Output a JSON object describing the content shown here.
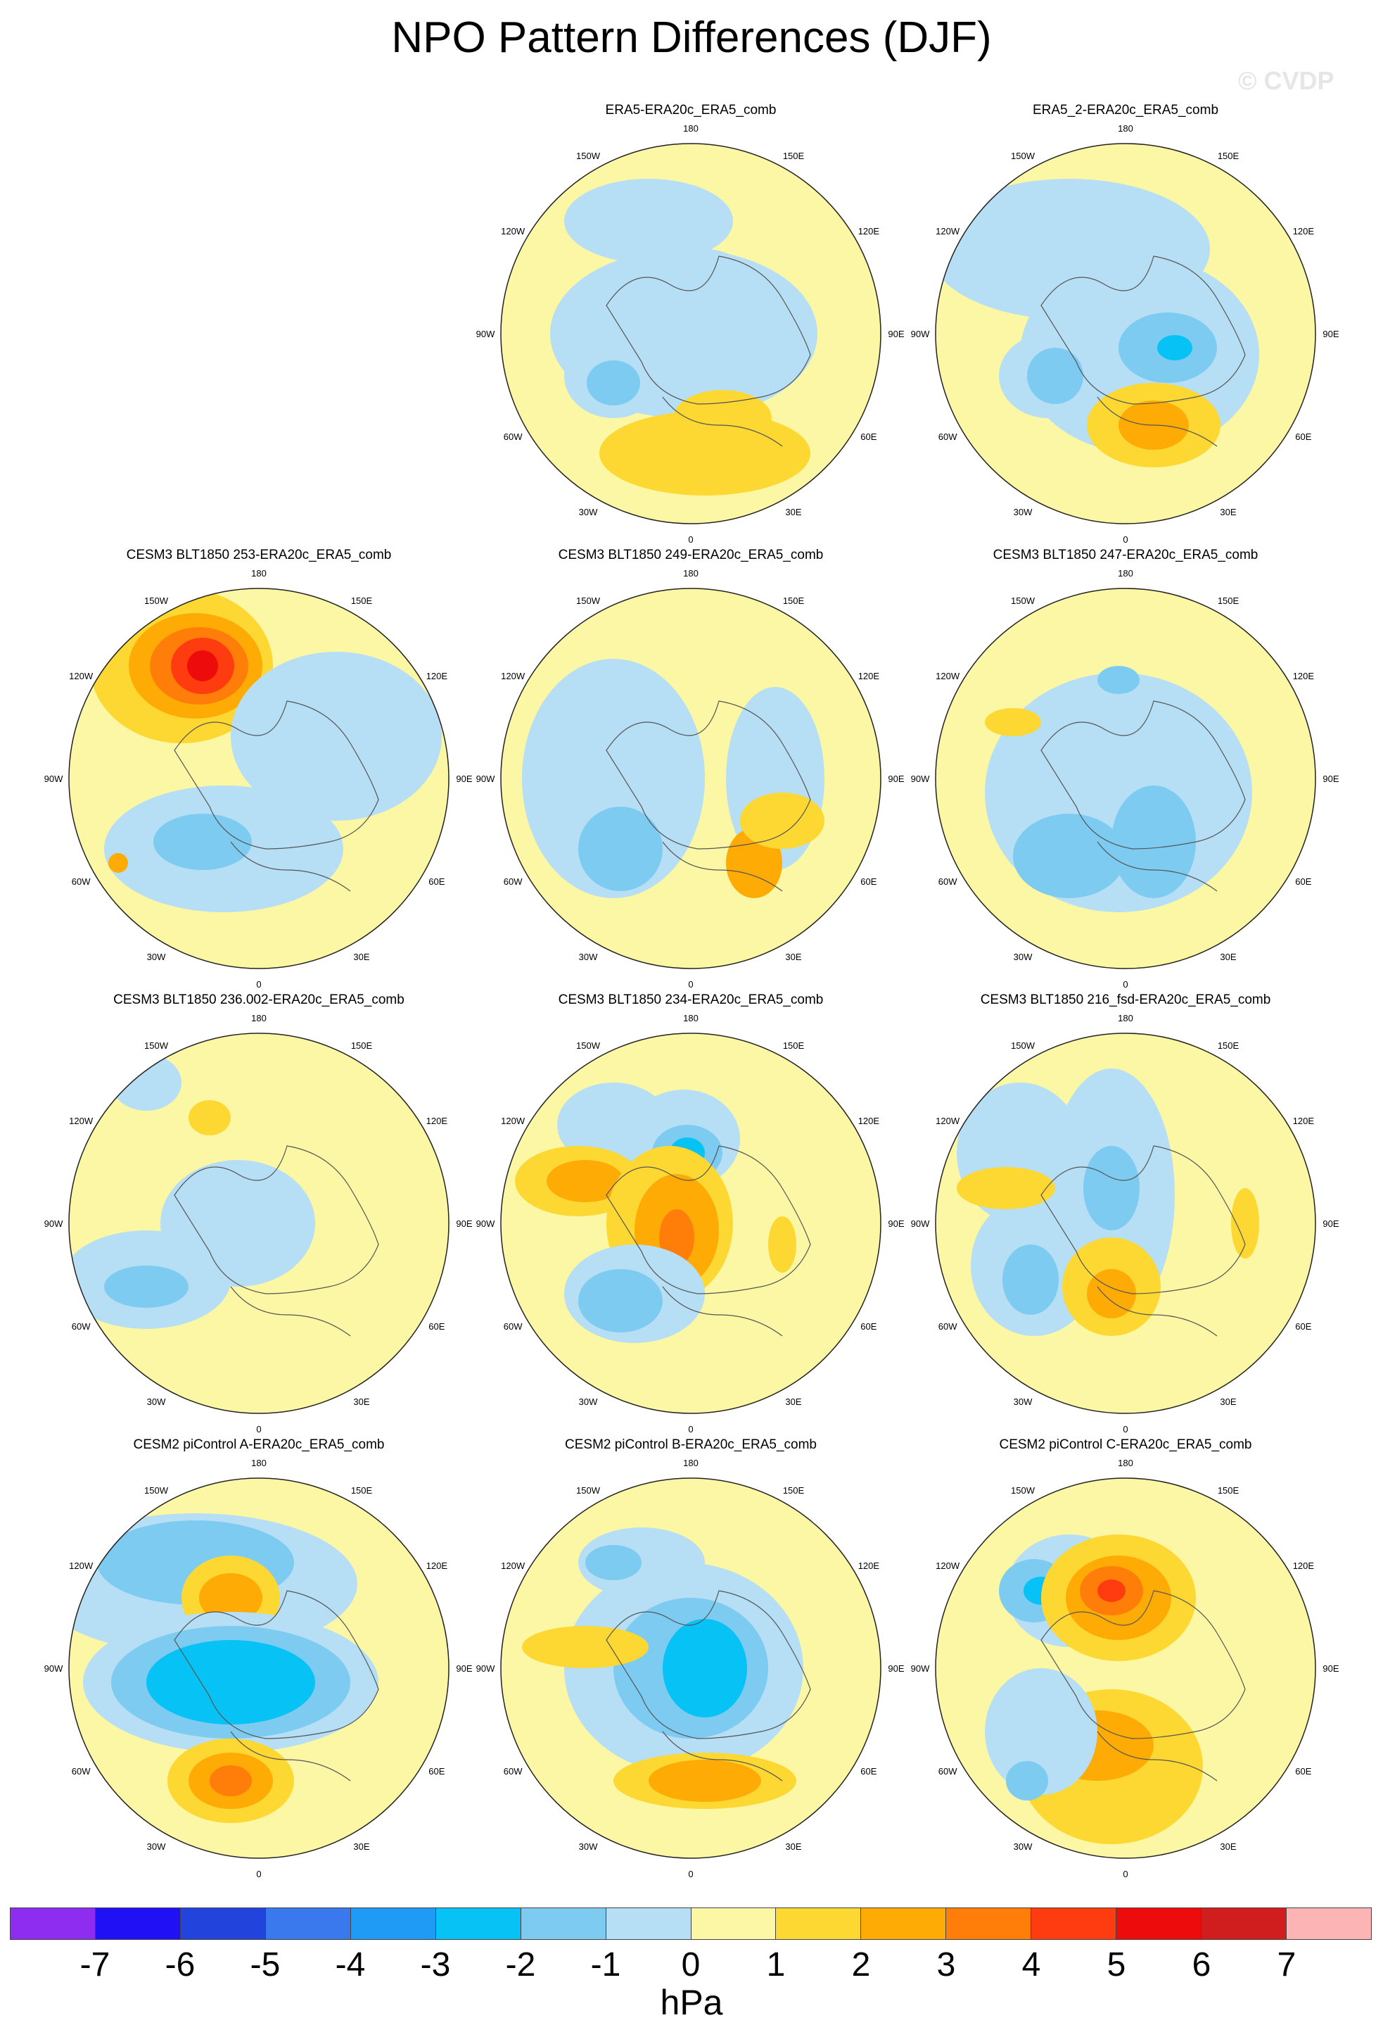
{
  "title": "NPO Pattern Differences (DJF)",
  "watermark": "© CVDP",
  "unit": "hPa",
  "colorbar": {
    "colors": [
      "#8e2cf0",
      "#1f10f5",
      "#2344dc",
      "#3a78ee",
      "#1f9bf6",
      "#06c2f5",
      "#7ecbf2",
      "#b6def4",
      "#fbf7a4",
      "#fdd833",
      "#feab06",
      "#ff7e0a",
      "#ff3b10",
      "#ee0b0b",
      "#d01e1e",
      "#fdb4b4"
    ],
    "ticks": [
      "-7",
      "-6",
      "-5",
      "-4",
      "-3",
      "-2",
      "-1",
      "0",
      "1",
      "2",
      "3",
      "4",
      "5",
      "6",
      "7"
    ]
  },
  "lon_labels": {
    "top": "180",
    "bottom": "0",
    "left": "90W",
    "right": "90E",
    "upper_left": "150W",
    "upper_right": "150E",
    "mid_upper_left": "120W",
    "mid_upper_right": "120E",
    "mid_lower_left": "60W",
    "mid_lower_right": "60E",
    "lower_left": "30W",
    "lower_right": "30E"
  },
  "panels": [
    {
      "title": "ERA5-ERA20c_ERA5_comb"
    },
    {
      "title": "ERA5_2-ERA20c_ERA5_comb"
    },
    {
      "title": "CESM3 BLT1850 253-ERA20c_ERA5_comb"
    },
    {
      "title": "CESM3 BLT1850 249-ERA20c_ERA5_comb"
    },
    {
      "title": "CESM3 BLT1850 247-ERA20c_ERA5_comb"
    },
    {
      "title": "CESM3 BLT1850 236.002-ERA20c_ERA5_comb"
    },
    {
      "title": "CESM3 BLT1850 234-ERA20c_ERA5_comb"
    },
    {
      "title": "CESM3 BLT1850 216_fsd-ERA20c_ERA5_comb"
    },
    {
      "title": "CESM2 piControl A-ERA20c_ERA5_comb"
    },
    {
      "title": "CESM2 piControl B-ERA20c_ERA5_comb"
    },
    {
      "title": "CESM2 piControl C-ERA20c_ERA5_comb"
    }
  ]
}
